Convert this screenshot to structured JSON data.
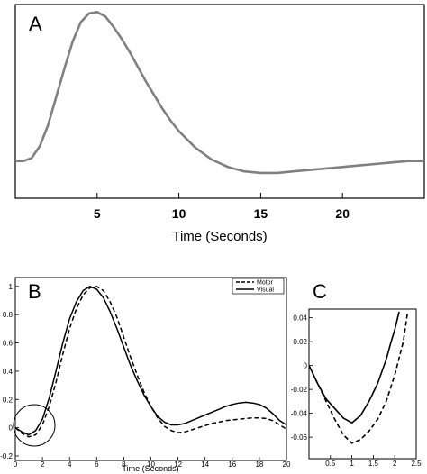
{
  "chart_data": [
    {
      "panel": "A",
      "type": "line",
      "xlabel": "Time (Seconds)",
      "ylabel": "",
      "xlim": [
        0,
        25
      ],
      "ylim": [
        -0.25,
        1.05
      ],
      "xticks": [
        5,
        10,
        15,
        20
      ],
      "yticks": [],
      "grid": false,
      "series": [
        {
          "color": "#808080",
          "x": [
            0,
            0.5,
            1,
            1.5,
            2,
            2.5,
            3,
            3.5,
            4,
            4.5,
            5,
            5.5,
            6,
            6.5,
            7,
            7.5,
            8,
            8.5,
            9,
            9.5,
            10,
            11,
            12,
            13,
            14,
            15,
            16,
            17,
            18,
            19,
            20,
            21,
            22,
            23,
            24,
            25
          ],
          "y": [
            0,
            0,
            0.02,
            0.1,
            0.24,
            0.43,
            0.62,
            0.8,
            0.93,
            0.99,
            1.0,
            0.97,
            0.9,
            0.82,
            0.73,
            0.63,
            0.53,
            0.44,
            0.35,
            0.27,
            0.2,
            0.09,
            0.01,
            -0.04,
            -0.07,
            -0.08,
            -0.08,
            -0.07,
            -0.06,
            -0.05,
            -0.04,
            -0.03,
            -0.02,
            -0.01,
            0,
            0
          ]
        }
      ]
    },
    {
      "panel": "B",
      "type": "line",
      "xlabel": "Time (Seconds)",
      "ylabel": "",
      "xlim": [
        0,
        20
      ],
      "ylim": [
        -0.2,
        1.05
      ],
      "xticks": [
        0,
        2,
        4,
        6,
        8,
        10,
        12,
        14,
        16,
        18,
        20
      ],
      "yticks": [
        -0.2,
        0,
        0.2,
        0.4,
        0.6,
        0.8,
        1
      ],
      "ytick_labels": [
        "-0.2",
        "0",
        "0.2",
        "0.4",
        "0.6",
        "0.8",
        "1"
      ],
      "legend": "top-right",
      "grid": false,
      "annotation": "circle around 0-3 s",
      "series": [
        {
          "name": "Motor",
          "style": "dashed",
          "x": [
            0,
            0.5,
            1,
            1.5,
            2,
            2.5,
            3,
            3.5,
            4,
            4.5,
            5,
            5.5,
            6,
            6.5,
            7,
            7.5,
            8,
            8.5,
            9,
            9.5,
            10,
            10.5,
            11,
            11.5,
            12,
            12.5,
            13,
            13.5,
            14,
            14.5,
            15,
            15.5,
            16,
            16.5,
            17,
            17.5,
            18,
            18.5,
            19,
            19.5,
            20
          ],
          "y": [
            0,
            -0.04,
            -0.065,
            -0.05,
            0.02,
            0.15,
            0.32,
            0.52,
            0.7,
            0.84,
            0.94,
            0.99,
            1.0,
            0.97,
            0.89,
            0.78,
            0.64,
            0.5,
            0.37,
            0.25,
            0.15,
            0.07,
            0.01,
            -0.02,
            -0.035,
            -0.03,
            -0.015,
            0,
            0.015,
            0.03,
            0.04,
            0.05,
            0.055,
            0.06,
            0.065,
            0.07,
            0.07,
            0.065,
            0.05,
            0.02,
            -0.01
          ]
        },
        {
          "name": "Visual",
          "style": "solid",
          "x": [
            0,
            0.5,
            1,
            1.5,
            2,
            2.5,
            3,
            3.5,
            4,
            4.5,
            5,
            5.5,
            6,
            6.5,
            7,
            7.5,
            8,
            8.5,
            9,
            9.5,
            10,
            10.5,
            11,
            11.5,
            12,
            12.5,
            13,
            13.5,
            14,
            14.5,
            15,
            15.5,
            16,
            16.5,
            17,
            17.5,
            18,
            18.5,
            19,
            19.5,
            20
          ],
          "y": [
            0,
            -0.03,
            -0.05,
            -0.02,
            0.06,
            0.21,
            0.4,
            0.6,
            0.77,
            0.89,
            0.97,
            1.0,
            0.98,
            0.92,
            0.82,
            0.7,
            0.57,
            0.44,
            0.33,
            0.23,
            0.15,
            0.08,
            0.04,
            0.02,
            0.02,
            0.03,
            0.05,
            0.07,
            0.09,
            0.11,
            0.13,
            0.15,
            0.165,
            0.175,
            0.18,
            0.175,
            0.165,
            0.14,
            0.1,
            0.05,
            0.02
          ]
        }
      ]
    },
    {
      "panel": "C",
      "type": "line",
      "xlabel": "",
      "ylabel": "",
      "xlim": [
        0,
        2.5
      ],
      "ylim": [
        -0.075,
        0.045
      ],
      "xticks": [
        0.5,
        1,
        1.5,
        2,
        2.5
      ],
      "yticks": [
        -0.06,
        -0.04,
        -0.02,
        0,
        0.02,
        0.04
      ],
      "ytick_labels": [
        "-0.06",
        "-0.04",
        "-0.02",
        "0",
        "0.02",
        "0.04"
      ],
      "grid": false,
      "series": [
        {
          "name": "Motor",
          "style": "dashed",
          "x": [
            0,
            0.2,
            0.4,
            0.6,
            0.8,
            1.0,
            1.2,
            1.4,
            1.6,
            1.8,
            2.0,
            2.2,
            2.3
          ],
          "y": [
            0,
            -0.015,
            -0.03,
            -0.045,
            -0.058,
            -0.065,
            -0.062,
            -0.055,
            -0.045,
            -0.03,
            -0.008,
            0.02,
            0.045
          ]
        },
        {
          "name": "Visual",
          "style": "solid",
          "x": [
            0,
            0.2,
            0.4,
            0.6,
            0.8,
            1.0,
            1.2,
            1.4,
            1.6,
            1.8,
            1.9,
            2.0,
            2.1
          ],
          "y": [
            0,
            -0.015,
            -0.028,
            -0.036,
            -0.044,
            -0.048,
            -0.042,
            -0.03,
            -0.015,
            0.005,
            0.018,
            0.03,
            0.045
          ]
        }
      ]
    }
  ]
}
